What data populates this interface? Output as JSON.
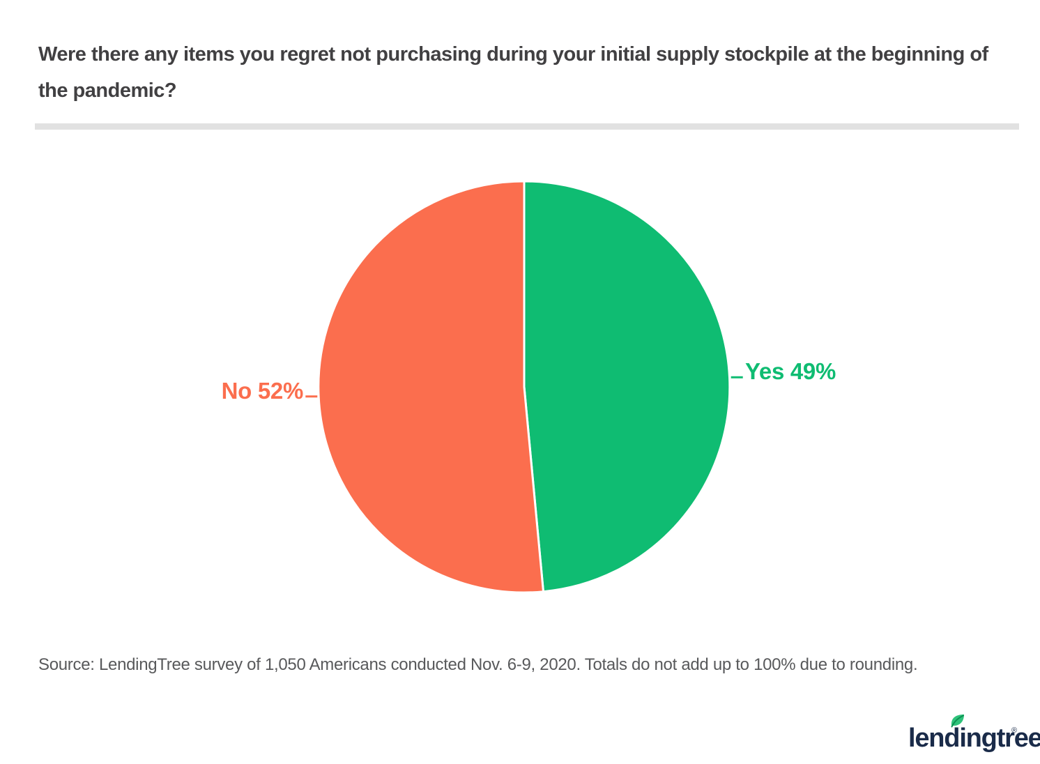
{
  "title": "Were there any items you regret not purchasing during your initial supply stockpile at the beginning of the pandemic?",
  "source_note": "Source: LendingTree survey of 1,050 Americans conducted Nov. 6-9, 2020. Totals do not add up to 100% due to rounding.",
  "logo": {
    "text": "lendingtree",
    "registered_mark": "®"
  },
  "colors": {
    "green": "#0FBC72",
    "orange": "#FB6E4E",
    "title": "#414042",
    "source": "#58595B",
    "divider": "#E1E1E1",
    "navy": "#1A2B49",
    "bg": "#FFFFFF"
  },
  "chart_data": {
    "type": "pie",
    "title": "Were there any items you regret not purchasing during your initial supply stockpile at the beginning of the pandemic?",
    "slices": [
      {
        "label": "Yes",
        "value": 49,
        "display": "Yes 49%",
        "color": "#0FBC72"
      },
      {
        "label": "No",
        "value": 52,
        "display": "No 52%",
        "color": "#FB6E4E"
      }
    ],
    "value_unit": "%",
    "start_angle_deg": 0,
    "direction": "clockwise",
    "legend_position": "none",
    "label_style": "outside-with-leader-ticks",
    "note": "Totals do not add up to 100% due to rounding."
  }
}
